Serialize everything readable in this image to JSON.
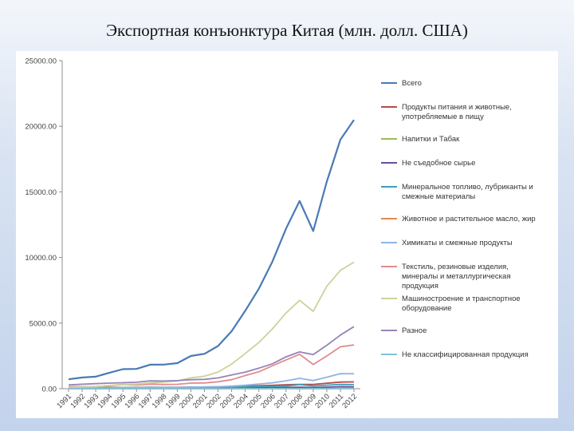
{
  "title": "Экспортная конъюнктура Китая (млн. долл. США)",
  "chart_data": {
    "type": "line",
    "title": "",
    "xlabel": "",
    "ylabel": "",
    "ylim": [
      0,
      25000
    ],
    "yticks": [
      "0.00",
      "5000.00",
      "10000.00",
      "15000.00",
      "20000.00",
      "25000.00"
    ],
    "x": [
      "1991",
      "1992",
      "1993",
      "1994",
      "1995",
      "1996",
      "1997",
      "1998",
      "1999",
      "2000",
      "2001",
      "2002",
      "2003",
      "2004",
      "2005",
      "2006",
      "2007",
      "2008",
      "2009",
      "2010",
      "2011",
      "2012"
    ],
    "legend_position": "right",
    "grid": false,
    "series": [
      {
        "name": "Всего",
        "color": "#4a7ab5",
        "values": [
          719,
          850,
          917,
          1210,
          1488,
          1511,
          1828,
          1837,
          1949,
          2492,
          2661,
          3256,
          4383,
          5934,
          7620,
          9690,
          12200,
          14307,
          12016,
          15779,
          18984,
          20487
        ]
      },
      {
        "name": "Продукты питания и животные, употребляемые в пищу",
        "color": "#b94a48",
        "values": [
          73,
          82,
          84,
          100,
          100,
          103,
          111,
          106,
          104,
          122,
          128,
          146,
          175,
          189,
          225,
          257,
          307,
          327,
          327,
          412,
          505,
          520
        ]
      },
      {
        "name": "Напитки и Табак",
        "color": "#9bbb59",
        "values": [
          5,
          7,
          9,
          10,
          14,
          13,
          10,
          10,
          8,
          7,
          9,
          10,
          10,
          12,
          12,
          12,
          14,
          15,
          16,
          19,
          23,
          26
        ]
      },
      {
        "name": "Не съедобное сырье",
        "color": "#6a4f9a",
        "values": [
          35,
          32,
          30,
          41,
          44,
          41,
          42,
          35,
          39,
          45,
          42,
          44,
          50,
          58,
          75,
          79,
          91,
          113,
          82,
          116,
          150,
          143
        ]
      },
      {
        "name": "Минеральное топливо, лубриканты и смежные материалы",
        "color": "#3f9fb7",
        "values": [
          47,
          47,
          41,
          41,
          54,
          59,
          70,
          52,
          47,
          78,
          84,
          84,
          112,
          145,
          176,
          177,
          200,
          318,
          204,
          267,
          323,
          310
        ]
      },
      {
        "name": "Животное и растительное масло, жир",
        "color": "#e8884a",
        "values": [
          2,
          3,
          3,
          5,
          5,
          4,
          7,
          4,
          4,
          1,
          1,
          1,
          1,
          1,
          3,
          4,
          3,
          6,
          3,
          3,
          5,
          5
        ]
      },
      {
        "name": "Химикаты и смежные продукты",
        "color": "#8eb4e3",
        "values": [
          38,
          44,
          46,
          62,
          91,
          89,
          102,
          103,
          104,
          121,
          133,
          153,
          195,
          263,
          357,
          445,
          603,
          793,
          620,
          875,
          1147,
          1136
        ]
      },
      {
        "name": "Текстиль, резиновые изделия, минералы и металлургическая продукция",
        "color": "#e38b8e",
        "values": [
          145,
          161,
          164,
          232,
          322,
          284,
          344,
          325,
          332,
          425,
          438,
          530,
          688,
          1005,
          1291,
          1748,
          2198,
          2623,
          1849,
          2491,
          3196,
          3332
        ]
      },
      {
        "name": "Машиностроение и транспортное оборудование",
        "color": "#c8d49a",
        "values": [
          71,
          132,
          153,
          219,
          314,
          353,
          437,
          502,
          589,
          827,
          950,
          1270,
          1878,
          2683,
          3523,
          4563,
          5770,
          6733,
          5902,
          7803,
          9018,
          9643
        ]
      },
      {
        "name": "Разное",
        "color": "#9783b8",
        "values": [
          287,
          340,
          384,
          423,
          459,
          495,
          598,
          585,
          615,
          688,
          713,
          822,
          1047,
          1264,
          1563,
          1900,
          2427,
          2803,
          2596,
          3307,
          4087,
          4732
        ]
      },
      {
        "name": "Не классифицированная продукция",
        "color": "#7fc4d8",
        "values": [
          1,
          1,
          1,
          2,
          2,
          2,
          2,
          2,
          2,
          1,
          1,
          1,
          1,
          1,
          2,
          2,
          2,
          3,
          3,
          5,
          10,
          18
        ]
      }
    ]
  }
}
